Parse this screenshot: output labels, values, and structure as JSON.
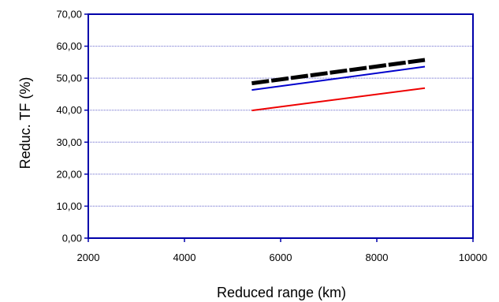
{
  "chart_data": {
    "type": "line",
    "title": "",
    "xlabel": "Reduced range (km)",
    "ylabel": "Reduc. TF (%)",
    "xlim": [
      2000,
      10000
    ],
    "ylim": [
      0,
      70
    ],
    "x_ticks": [
      2000,
      4000,
      6000,
      8000,
      10000
    ],
    "x_tick_labels": [
      "2000",
      "4000",
      "6000",
      "8000",
      "10000"
    ],
    "y_ticks": [
      0,
      10,
      20,
      30,
      40,
      50,
      60,
      70
    ],
    "y_tick_labels": [
      "0,00",
      "10,00",
      "20,00",
      "30,00",
      "40,00",
      "50,00",
      "60,00",
      "70,00"
    ],
    "grid": "horizontal",
    "legend": "none",
    "series": [
      {
        "color": "#000000",
        "style": "thick-dashed",
        "x": [
          5400,
          9000
        ],
        "y": [
          48.4,
          55.7
        ]
      },
      {
        "color": "#0000cc",
        "style": "solid",
        "x": [
          5400,
          9000
        ],
        "y": [
          46.3,
          53.6
        ]
      },
      {
        "color": "#ee0000",
        "style": "solid",
        "x": [
          5400,
          9000
        ],
        "y": [
          39.9,
          46.9
        ]
      }
    ],
    "colors": {
      "axis": "#0000aa",
      "grid": "#6666cc"
    }
  }
}
